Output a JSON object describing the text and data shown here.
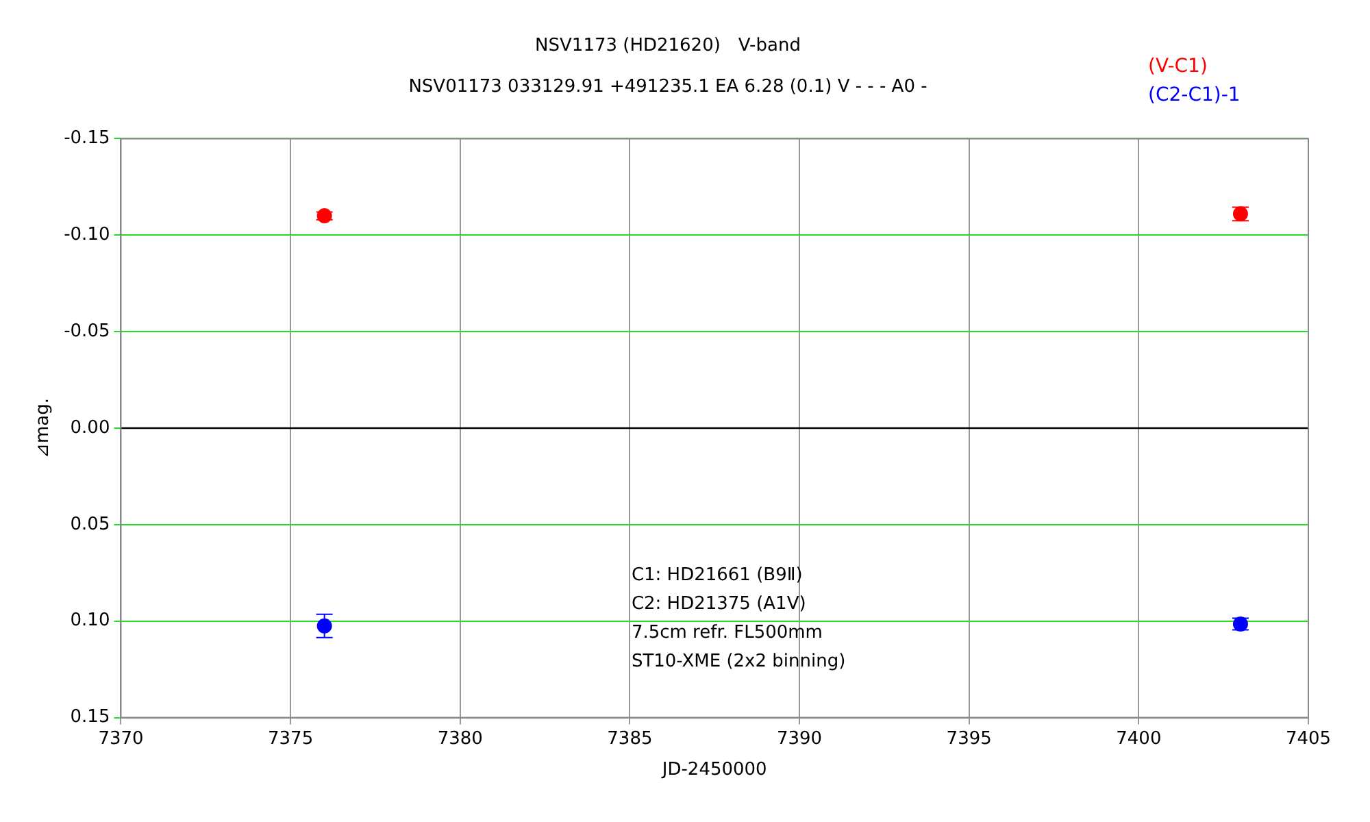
{
  "chart_data": {
    "type": "scatter",
    "title": "NSV1173 (HD21620)　V-band",
    "subtitle": "NSV01173 033129.91 +491235.1 EA 6.28 (0.1) V - - - A0 -",
    "xlabel": "JD-2450000",
    "ylabel": "⊿mag.",
    "x": [
      7376.0,
      7403.0
    ],
    "series": [
      {
        "name": "(V-C1)",
        "color": "#ff0000",
        "values": [
          -0.11,
          -0.111
        ],
        "errors": [
          0.002,
          0.0035
        ]
      },
      {
        "name": "(C2-C1)-1",
        "color": "#0000ff",
        "values": [
          0.1025,
          0.1015
        ],
        "errors": [
          0.006,
          0.003
        ]
      }
    ],
    "xlim": [
      7370,
      7405
    ],
    "xticks": [
      7370,
      7375,
      7380,
      7385,
      7390,
      7395,
      7400,
      7405
    ],
    "ylim": [
      0.15,
      -0.15
    ],
    "yticks": [
      -0.15,
      {
        "value": -0.1,
        "label": "-0.10"
      },
      -0.05,
      {
        "value": 0,
        "label": "0.00"
      },
      0.05,
      {
        "value": 0.1,
        "label": "0.10"
      },
      0.15
    ],
    "ref_lines": [
      {
        "axis": "y",
        "value": 0,
        "color": "#000000",
        "line_style": "solid"
      }
    ],
    "annotations": [
      "C1: HD21661 (B9Ⅱ)",
      "C2: HD21375 (A1V)",
      "7.5cm refr. FL500mm",
      "ST10-XME (2x2 binning)"
    ],
    "grid": true,
    "legend": "top right",
    "marker": "circle"
  }
}
